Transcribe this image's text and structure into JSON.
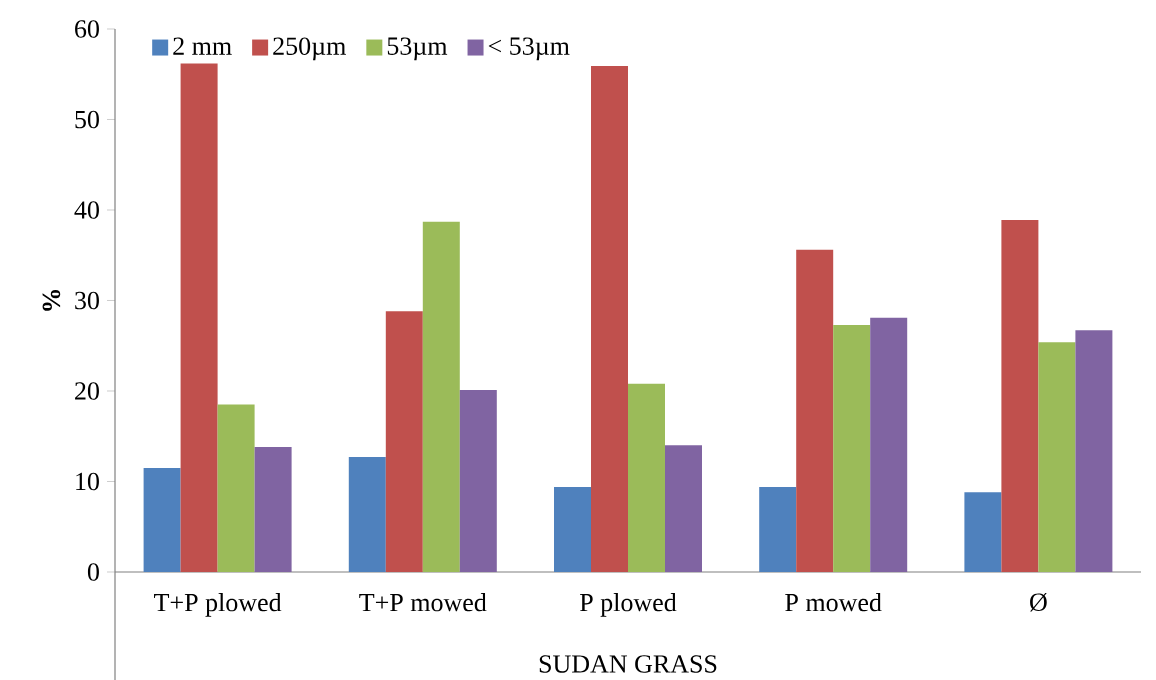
{
  "chart_data": {
    "type": "bar",
    "xlabel": "SUDAN GRASS",
    "ylabel": "%",
    "categories": [
      "T+P plowed",
      "T+P mowed",
      "P plowed",
      "P mowed",
      "Ø"
    ],
    "series": [
      {
        "name": "2 mm",
        "color": "#4f81bd",
        "values": [
          11.5,
          12.7,
          9.4,
          9.4,
          8.8
        ]
      },
      {
        "name": "250µm",
        "color": "#c0504d",
        "values": [
          56.2,
          28.8,
          55.9,
          35.6,
          38.9
        ]
      },
      {
        "name": "53µm",
        "color": "#9bbb59",
        "values": [
          18.5,
          38.7,
          20.8,
          27.3,
          25.4
        ]
      },
      {
        "name": "< 53µm",
        "color": "#8064a2",
        "values": [
          13.8,
          20.1,
          14.0,
          28.1,
          26.7
        ]
      }
    ],
    "ylim": [
      0,
      60
    ],
    "yticks": [
      0,
      10,
      20,
      30,
      40,
      50,
      60
    ],
    "legend": "top left"
  }
}
